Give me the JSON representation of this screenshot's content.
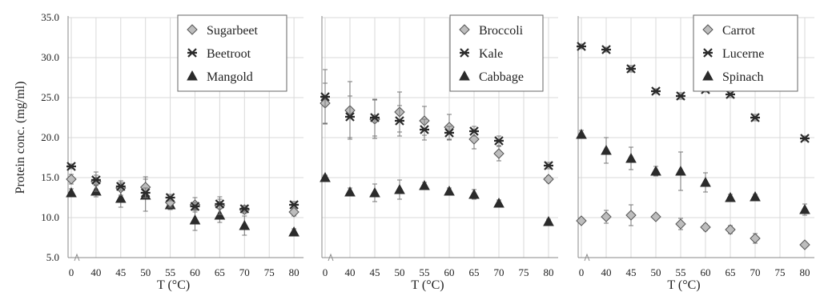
{
  "chart_data": [
    {
      "type": "scatter",
      "ylabel": "Protein conc. (mg/ml)",
      "xlabel": "T (°C)",
      "ylim": [
        5.0,
        35.0
      ],
      "y_ticks": [
        "5.0",
        "10.0",
        "15.0",
        "20.0",
        "25.0",
        "30.0",
        "35.0"
      ],
      "x_ticks": [
        "0",
        "40",
        "45",
        "50",
        "55",
        "60",
        "65",
        "70",
        "75",
        "80"
      ],
      "legend_position": "top-right",
      "series": [
        {
          "name": "Sugarbeet",
          "marker": "diamond",
          "x": [
            0,
            40,
            45,
            50,
            55,
            60,
            65,
            70,
            80
          ],
          "y": [
            14.8,
            14.5,
            13.7,
            13.8,
            11.9,
            11.6,
            11.5,
            11.0,
            10.7
          ],
          "err": [
            0.6,
            1.2,
            0.9,
            1.3,
            0.6,
            0.9,
            1.1,
            0.5,
            0.5
          ]
        },
        {
          "name": "Beetroot",
          "marker": "asterisk",
          "x": [
            0,
            40,
            45,
            50,
            55,
            60,
            65,
            70,
            80
          ],
          "y": [
            16.4,
            14.7,
            13.9,
            13.1,
            12.5,
            11.4,
            11.7,
            11.1,
            11.6
          ],
          "err": [
            0.3,
            0.6,
            0.5,
            0.6,
            0.4,
            0.5,
            0.6,
            0.4,
            0.4
          ]
        },
        {
          "name": "Mangold",
          "marker": "triangle",
          "x": [
            0,
            40,
            45,
            50,
            55,
            60,
            65,
            70,
            80
          ],
          "y": [
            13.1,
            13.3,
            12.4,
            12.8,
            11.6,
            9.7,
            10.3,
            9.0,
            8.2
          ],
          "err": [
            0.5,
            0.7,
            1.1,
            2.0,
            0.6,
            1.3,
            0.9,
            1.2,
            0.4
          ]
        }
      ]
    },
    {
      "type": "scatter",
      "xlabel": "T (°C)",
      "ylim": [
        5.0,
        35.0
      ],
      "x_ticks": [
        "0",
        "40",
        "45",
        "50",
        "55",
        "60",
        "65",
        "70",
        "75",
        "80"
      ],
      "legend_position": "top-right",
      "series": [
        {
          "name": "Broccoli",
          "marker": "diamond",
          "x": [
            0,
            40,
            45,
            50,
            55,
            60,
            65,
            70,
            80
          ],
          "y": [
            24.3,
            23.4,
            22.3,
            23.2,
            22.1,
            21.3,
            19.8,
            18.0,
            14.8
          ],
          "err": [
            2.5,
            3.6,
            2.4,
            2.5,
            1.8,
            1.6,
            1.2,
            0.9,
            0.4
          ]
        },
        {
          "name": "Kale",
          "marker": "asterisk",
          "x": [
            0,
            40,
            45,
            50,
            55,
            60,
            65,
            70,
            80
          ],
          "y": [
            25.1,
            22.6,
            22.5,
            22.1,
            21.0,
            20.6,
            20.8,
            19.6,
            16.5
          ],
          "err": [
            3.4,
            2.6,
            2.3,
            1.9,
            1.3,
            0.8,
            0.6,
            0.6,
            0.4
          ]
        },
        {
          "name": "Cabbage",
          "marker": "triangle",
          "x": [
            0,
            40,
            45,
            50,
            55,
            60,
            65,
            70,
            80
          ],
          "y": [
            15.0,
            13.2,
            13.1,
            13.5,
            14.0,
            13.3,
            12.9,
            11.8,
            9.5
          ],
          "err": [
            0.3,
            0.5,
            1.1,
            1.2,
            0.4,
            0.4,
            0.6,
            0.4,
            0.3
          ]
        }
      ]
    },
    {
      "type": "scatter",
      "xlabel": "T (°C)",
      "ylim": [
        5.0,
        35.0
      ],
      "x_ticks": [
        "0",
        "40",
        "45",
        "50",
        "55",
        "60",
        "65",
        "70",
        "75",
        "80"
      ],
      "legend_position": "top-right",
      "series": [
        {
          "name": "Carrot",
          "marker": "diamond",
          "x": [
            0,
            40,
            45,
            50,
            55,
            60,
            65,
            70,
            80
          ],
          "y": [
            9.6,
            10.1,
            10.3,
            10.1,
            9.2,
            8.8,
            8.5,
            7.4,
            6.6
          ],
          "err": [
            0.3,
            0.8,
            1.3,
            0.3,
            0.7,
            0.4,
            0.5,
            0.6,
            0.3
          ]
        },
        {
          "name": "Lucerne",
          "marker": "asterisk",
          "x": [
            0,
            40,
            45,
            50,
            55,
            60,
            65,
            70,
            80
          ],
          "y": [
            31.4,
            31.0,
            28.6,
            25.8,
            25.2,
            26.0,
            25.4,
            22.5,
            19.9
          ],
          "err": [
            0.3,
            0.3,
            0.4,
            0.3,
            0.4,
            0.3,
            0.4,
            0.4,
            0.3
          ]
        },
        {
          "name": "Spinach",
          "marker": "triangle",
          "x": [
            0,
            40,
            45,
            50,
            55,
            60,
            65,
            70,
            80
          ],
          "y": [
            20.4,
            18.4,
            17.4,
            15.8,
            15.8,
            14.4,
            12.5,
            12.6,
            11.0
          ],
          "err": [
            0.5,
            1.6,
            1.4,
            0.6,
            2.4,
            1.2,
            0.4,
            0.3,
            0.7
          ]
        }
      ]
    }
  ]
}
